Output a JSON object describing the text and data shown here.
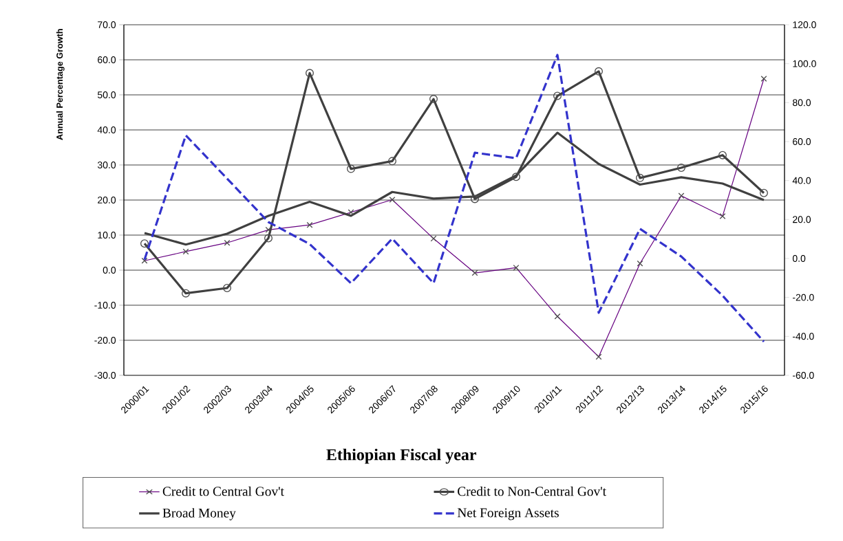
{
  "chart_data": {
    "type": "line",
    "xlabel": "Ethiopian Fiscal year",
    "ylabel": "Annual Percentage Growth",
    "categories": [
      "2000/01",
      "2001/02",
      "2002/03",
      "2003/04",
      "2004/05",
      "2005/06",
      "2006/07",
      "2007/08",
      "2008/09",
      "2009/10",
      "2010/11",
      "2011/12",
      "2012/13",
      "2013/14",
      "2014/15",
      "2015/16"
    ],
    "series": [
      {
        "name": "Credit to Central Gov't",
        "color": "#660080",
        "marker": "cross",
        "line_style": "solid",
        "values": [
          2.7,
          5.3,
          7.8,
          11.5,
          12.9,
          16.5,
          20.1,
          9.0,
          -0.8,
          0.7,
          -13.2,
          -24.7,
          1.9,
          21.2,
          15.4,
          54.6
        ]
      },
      {
        "name": "Credit to Non-Central Gov't",
        "color": "#404040",
        "marker": "circle",
        "line_style": "solid",
        "values": [
          7.6,
          -6.6,
          -5.1,
          9.1,
          56.2,
          28.9,
          31.1,
          48.8,
          20.3,
          26.6,
          49.7,
          56.7,
          26.3,
          29.2,
          32.8,
          22.0
        ]
      },
      {
        "name": "Broad Money",
        "color": "#404040",
        "marker": "none",
        "line_style": "solid",
        "values": [
          10.6,
          7.3,
          10.4,
          15.5,
          19.5,
          15.5,
          22.3,
          20.4,
          21.0,
          27.0,
          39.2,
          30.3,
          24.4,
          26.5,
          24.7,
          20.0
        ]
      },
      {
        "name": "Net Foreign Assets",
        "color": "#3333cc",
        "marker": "none",
        "line_style": "dashed",
        "axis": "y2",
        "values": [
          -0.6,
          63.2,
          41.0,
          18.7,
          7.4,
          -12.7,
          10.2,
          -12.7,
          54.3,
          51.5,
          104.5,
          -27.9,
          15.2,
          1.0,
          -19.1,
          -42.7
        ]
      }
    ],
    "ylim": [
      -30,
      70
    ],
    "yticks": [
      {
        "value": -30,
        "label": "-30.0"
      },
      {
        "value": -20,
        "label": "-20.0"
      },
      {
        "value": -10,
        "label": "-10.0"
      },
      {
        "value": 0,
        "label": "0.0"
      },
      {
        "value": 10,
        "label": "10.0"
      },
      {
        "value": 20,
        "label": "20.0"
      },
      {
        "value": 30,
        "label": "30.0"
      },
      {
        "value": 40,
        "label": "40.0"
      },
      {
        "value": 50,
        "label": "50.0"
      },
      {
        "value": 60,
        "label": "60.0"
      },
      {
        "value": 70,
        "label": "70.0"
      }
    ],
    "y2lim": [
      -60,
      120
    ],
    "y2ticks": [
      {
        "value": -60,
        "label": "-60.0"
      },
      {
        "value": -40,
        "label": "-40.0"
      },
      {
        "value": -20,
        "label": "-20.0"
      },
      {
        "value": 0,
        "label": "0.0"
      },
      {
        "value": 20,
        "label": "20.0"
      },
      {
        "value": 40,
        "label": "40.0"
      },
      {
        "value": 60,
        "label": "60.0"
      },
      {
        "value": 80,
        "label": "80.0"
      },
      {
        "value": 100,
        "label": "100.0"
      },
      {
        "value": 120,
        "label": "120.0"
      }
    ],
    "grid": "y",
    "legend": "bottom"
  }
}
